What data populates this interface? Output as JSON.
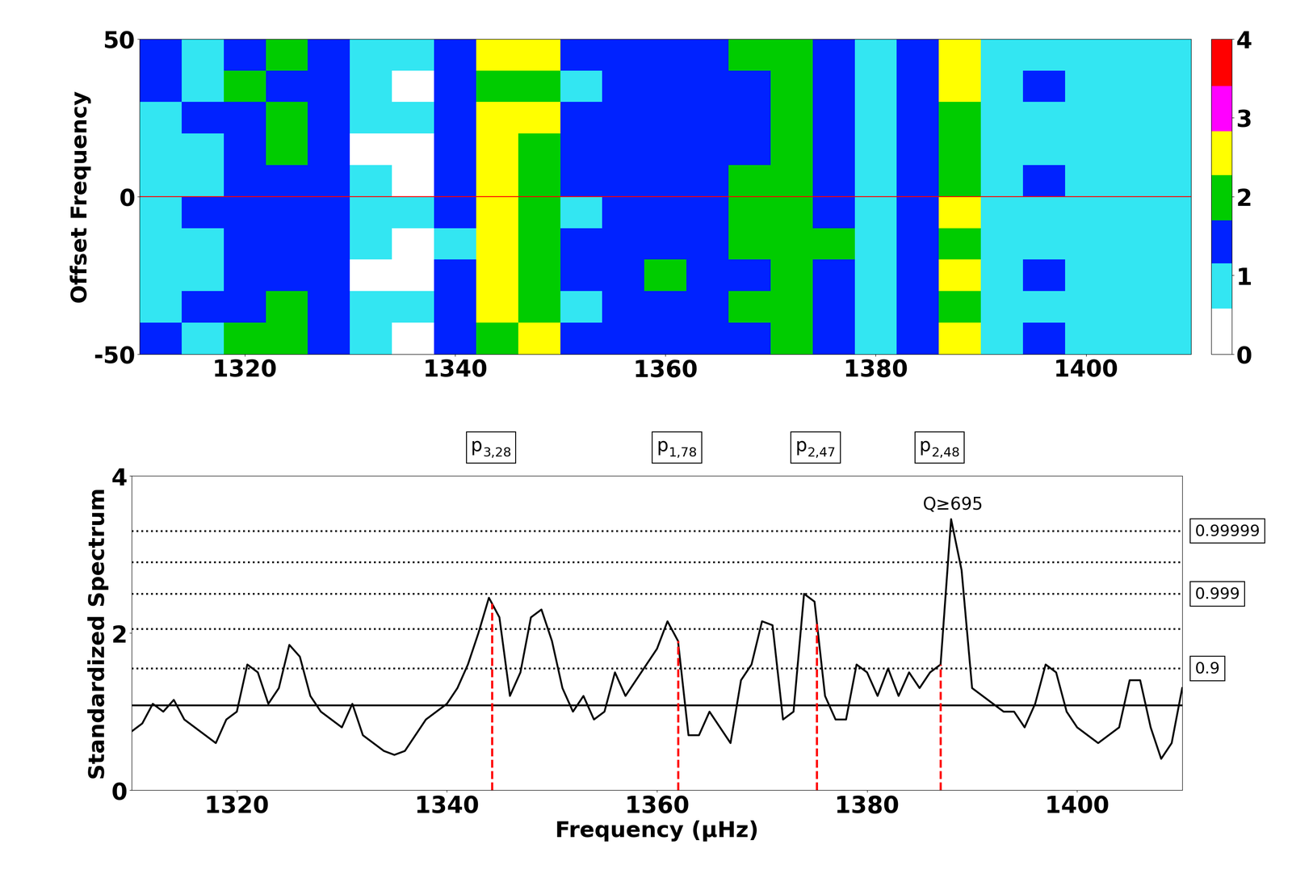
{
  "chart_data": [
    {
      "type": "heatmap",
      "ylabel": "Offset Frequency",
      "xlim": [
        1310,
        1410
      ],
      "ylim": [
        -50,
        50
      ],
      "xticks": [
        1320,
        1340,
        1360,
        1380,
        1400
      ],
      "yticks": [
        -50,
        0,
        50
      ],
      "x_edges": [
        1310,
        1314,
        1318,
        1322,
        1326,
        1330,
        1334,
        1338,
        1342,
        1346,
        1350,
        1354,
        1358,
        1362,
        1366,
        1370,
        1374,
        1378,
        1382,
        1386,
        1390,
        1394,
        1398,
        1402,
        1406,
        1410
      ],
      "y_edges": [
        -50,
        -40,
        -30,
        -20,
        -10,
        0,
        10,
        20,
        30,
        40,
        50
      ],
      "cells": [
        [
          1.2,
          1.0,
          1.8,
          1.7,
          1.5,
          0.7,
          0.5,
          1.4,
          2.0,
          2.3,
          1.3,
          1.2,
          1.6,
          1.3,
          1.5,
          1.7,
          1.4,
          1.1,
          1.4,
          2.6,
          1.0,
          1.2,
          0.8,
          0.9,
          0.8
        ],
        [
          1.0,
          1.3,
          1.6,
          1.9,
          1.3,
          0.6,
          0.6,
          1.2,
          2.6,
          2.0,
          1.1,
          1.4,
          1.4,
          1.5,
          1.7,
          1.8,
          1.6,
          0.9,
          1.2,
          2.0,
          1.1,
          1.0,
          1.0,
          0.7,
          1.0
        ],
        [
          0.9,
          1.1,
          1.4,
          1.5,
          1.6,
          0.5,
          0.4,
          1.5,
          2.3,
          2.2,
          1.3,
          1.2,
          1.7,
          1.4,
          1.5,
          2.0,
          1.3,
          1.0,
          1.5,
          2.3,
          0.9,
          1.2,
          0.9,
          0.8,
          0.9
        ],
        [
          1.1,
          1.0,
          1.5,
          1.4,
          1.2,
          0.6,
          0.5,
          1.1,
          2.5,
          1.9,
          1.2,
          1.5,
          1.5,
          1.6,
          1.8,
          2.1,
          1.7,
          1.1,
          1.2,
          2.1,
          1.0,
          1.0,
          0.8,
          0.9,
          1.0
        ],
        [
          1.0,
          1.2,
          1.3,
          1.6,
          1.4,
          0.7,
          0.6,
          1.4,
          2.7,
          2.1,
          1.1,
          1.3,
          1.6,
          1.5,
          1.9,
          2.2,
          1.6,
          1.0,
          1.3,
          2.4,
          1.1,
          1.1,
          0.9,
          0.8,
          0.8
        ],
        [
          0.9,
          1.0,
          1.4,
          1.5,
          1.3,
          0.6,
          0.5,
          1.3,
          2.6,
          2.2,
          1.2,
          1.2,
          1.5,
          1.6,
          1.7,
          2.0,
          1.5,
          1.0,
          1.4,
          2.2,
          1.0,
          1.2,
          1.0,
          0.7,
          0.9
        ],
        [
          1.0,
          1.1,
          1.6,
          1.7,
          1.5,
          0.5,
          0.5,
          1.2,
          2.4,
          2.0,
          1.3,
          1.4,
          1.4,
          1.3,
          1.6,
          1.9,
          1.4,
          0.9,
          1.3,
          2.1,
          0.9,
          1.1,
          0.9,
          0.8,
          1.0
        ],
        [
          1.1,
          1.2,
          1.5,
          1.8,
          1.4,
          0.6,
          0.6,
          1.3,
          2.5,
          2.3,
          1.2,
          1.3,
          1.6,
          1.4,
          1.5,
          1.8,
          1.5,
          1.0,
          1.2,
          2.0,
          1.0,
          1.0,
          0.8,
          0.9,
          0.9
        ],
        [
          1.2,
          1.1,
          1.7,
          1.6,
          1.6,
          0.7,
          0.5,
          1.4,
          2.2,
          2.1,
          1.1,
          1.2,
          1.5,
          1.5,
          1.6,
          1.7,
          1.6,
          1.1,
          1.3,
          2.3,
          1.1,
          1.2,
          0.9,
          0.8,
          0.8
        ],
        [
          1.3,
          1.0,
          1.6,
          1.9,
          1.5,
          0.6,
          0.6,
          1.5,
          2.8,
          2.4,
          1.3,
          1.4,
          1.4,
          1.4,
          1.7,
          1.9,
          1.5,
          1.0,
          1.4,
          2.5,
          1.0,
          1.1,
          1.0,
          0.9,
          0.9
        ]
      ],
      "zero_line": 0,
      "zero_line_color": "#ff0000",
      "colorbar": {
        "range": [
          0,
          4
        ],
        "ticks": [
          0,
          1,
          2,
          3,
          4
        ],
        "boundaries": [
          0,
          0.58,
          1.15,
          1.7,
          2.27,
          2.83,
          3.4,
          4
        ],
        "colors": [
          "#ffffff",
          "#33e6f2",
          "#0022ff",
          "#00cc00",
          "#ffff00",
          "#ff00ff",
          "#ff0000"
        ]
      }
    },
    {
      "type": "line",
      "xlabel": "Frequency (μHz)",
      "ylabel": "Standardized Spectrum",
      "xlim": [
        1310,
        1410
      ],
      "ylim": [
        0,
        4
      ],
      "xticks": [
        1320,
        1340,
        1360,
        1380,
        1400
      ],
      "yticks": [
        0,
        2,
        4
      ],
      "color": "#000000",
      "x": [
        1310,
        1311,
        1312,
        1313,
        1314,
        1315,
        1316,
        1317,
        1318,
        1319,
        1320,
        1321,
        1322,
        1323,
        1324,
        1325,
        1326,
        1327,
        1328,
        1329,
        1330,
        1331,
        1332,
        1333,
        1334,
        1335,
        1336,
        1337,
        1338,
        1339,
        1340,
        1341,
        1342,
        1343,
        1344,
        1345,
        1346,
        1347,
        1348,
        1349,
        1350,
        1351,
        1352,
        1353,
        1354,
        1355,
        1356,
        1357,
        1358,
        1359,
        1360,
        1361,
        1362,
        1363,
        1364,
        1365,
        1366,
        1367,
        1368,
        1369,
        1370,
        1371,
        1372,
        1373,
        1374,
        1375,
        1376,
        1377,
        1378,
        1379,
        1380,
        1381,
        1382,
        1383,
        1384,
        1385,
        1386,
        1387,
        1388,
        1389,
        1390,
        1391,
        1392,
        1393,
        1394,
        1395,
        1396,
        1397,
        1398,
        1399,
        1400,
        1401,
        1402,
        1403,
        1404,
        1405,
        1406,
        1407,
        1408,
        1409,
        1410
      ],
      "values": [
        0.75,
        0.85,
        1.1,
        1.0,
        1.15,
        0.9,
        0.8,
        0.7,
        0.6,
        0.9,
        1.0,
        1.6,
        1.5,
        1.1,
        1.3,
        1.85,
        1.7,
        1.2,
        1.0,
        0.9,
        0.8,
        1.1,
        0.7,
        0.6,
        0.5,
        0.45,
        0.5,
        0.7,
        0.9,
        1.0,
        1.1,
        1.3,
        1.6,
        2.0,
        2.45,
        2.2,
        1.2,
        1.5,
        2.2,
        2.3,
        1.9,
        1.3,
        1.0,
        1.2,
        0.9,
        1.0,
        1.5,
        1.2,
        1.4,
        1.6,
        1.8,
        2.15,
        1.9,
        0.7,
        0.7,
        1.0,
        0.8,
        0.6,
        1.4,
        1.6,
        2.15,
        2.1,
        0.9,
        1.0,
        2.5,
        2.4,
        1.2,
        0.9,
        0.9,
        1.6,
        1.5,
        1.2,
        1.55,
        1.2,
        1.5,
        1.3,
        1.5,
        1.6,
        3.45,
        2.8,
        1.3,
        1.2,
        1.1,
        1.0,
        1.0,
        0.8,
        1.1,
        1.6,
        1.5,
        1.0,
        0.8,
        0.7,
        0.6,
        0.7,
        0.8,
        1.4,
        1.4,
        0.8,
        0.4,
        0.6,
        1.3
      ],
      "mean_level": 1.08,
      "threshold_levels": [
        1.55,
        2.05,
        2.5,
        2.9,
        3.3
      ],
      "threshold_labels": [
        {
          "value": 1.55,
          "label": "0.9"
        },
        {
          "value": 2.5,
          "label": "0.999"
        },
        {
          "value": 3.3,
          "label": "0.99999"
        }
      ],
      "peak_line_color": "#ff0000",
      "peaks": [
        {
          "x": 1344.3,
          "name": "p",
          "subscript": "3,28"
        },
        {
          "x": 1362.0,
          "name": "p",
          "subscript": "1,78"
        },
        {
          "x": 1375.2,
          "name": "p",
          "subscript": "2,47"
        },
        {
          "x": 1387.0,
          "name": "p",
          "subscript": "2,48"
        }
      ],
      "annotation": {
        "x": 1388.2,
        "y": 3.45,
        "text": "Q≥695"
      }
    }
  ]
}
